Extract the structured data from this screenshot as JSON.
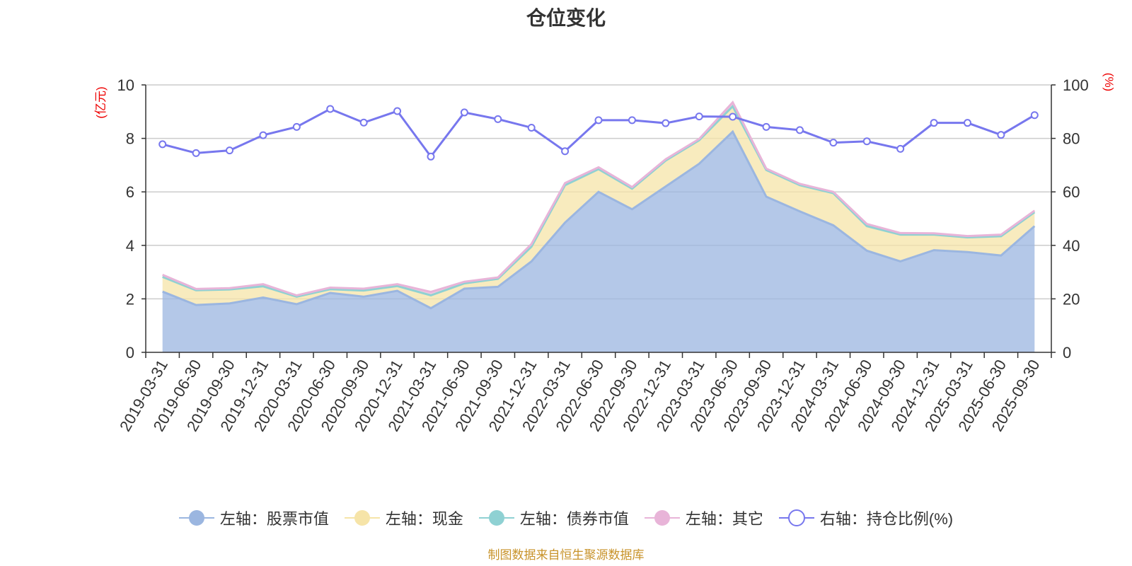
{
  "title": "仓位变化",
  "source": "制图数据来自恒生聚源数据库",
  "chart_data": {
    "type": "area",
    "title": "仓位变化",
    "categories": [
      "2019-03-31",
      "2019-06-30",
      "2019-09-30",
      "2019-12-31",
      "2020-03-31",
      "2020-06-30",
      "2020-09-30",
      "2020-12-31",
      "2021-03-31",
      "2021-06-30",
      "2021-09-30",
      "2021-12-31",
      "2022-03-31",
      "2022-06-30",
      "2022-09-30",
      "2022-12-31",
      "2023-03-31",
      "2023-06-30",
      "2023-09-30",
      "2023-12-31",
      "2024-03-31",
      "2024-06-30",
      "2024-09-30",
      "2024-12-31",
      "2025-03-31",
      "2025-06-30",
      "2025-09-30"
    ],
    "left_axis": {
      "label": "(亿元)",
      "ylim": [
        0,
        10
      ],
      "ticks": [
        0,
        2,
        4,
        6,
        8,
        10
      ]
    },
    "right_axis": {
      "label": "(%)",
      "ylim": [
        0,
        100
      ],
      "ticks": [
        0,
        20,
        40,
        60,
        80,
        100
      ]
    },
    "stacked": true,
    "series": [
      {
        "name": "左轴：股票市值",
        "axis": "left",
        "color": "#9bb6e0",
        "values": [
          2.27,
          1.77,
          1.83,
          2.05,
          1.8,
          2.22,
          2.08,
          2.3,
          1.65,
          2.38,
          2.45,
          3.4,
          4.85,
          6.0,
          5.35,
          6.2,
          7.05,
          8.25,
          5.82,
          5.27,
          4.75,
          3.8,
          3.4,
          3.82,
          3.75,
          3.62,
          4.72
        ]
      },
      {
        "name": "左轴：现金",
        "axis": "left",
        "color": "#f6e4a8",
        "values": [
          0.55,
          0.55,
          0.52,
          0.42,
          0.28,
          0.14,
          0.23,
          0.18,
          0.48,
          0.2,
          0.3,
          0.55,
          1.4,
          0.85,
          0.77,
          0.97,
          0.88,
          0.95,
          1.0,
          0.98,
          1.2,
          0.92,
          1.0,
          0.58,
          0.55,
          0.72,
          0.52
        ]
      },
      {
        "name": "左轴：债券市值",
        "axis": "left",
        "color": "#8fd1d3",
        "values": [
          0,
          0,
          0,
          0,
          0,
          0,
          0,
          0,
          0,
          0,
          0,
          0,
          0,
          0,
          0,
          0,
          0,
          0,
          0,
          0,
          0,
          0,
          0,
          0,
          0,
          0,
          0
        ]
      },
      {
        "name": "左轴：其它",
        "axis": "left",
        "color": "#e8b4d8",
        "values": [
          0.08,
          0.05,
          0.05,
          0.08,
          0.05,
          0.06,
          0.07,
          0.07,
          0.13,
          0.06,
          0.05,
          0.1,
          0.08,
          0.07,
          0.06,
          0.05,
          0.05,
          0.15,
          0.05,
          0.05,
          0.05,
          0.08,
          0.06,
          0.05,
          0.05,
          0.06,
          0.06
        ]
      },
      {
        "name": "右轴：持仓比例(%)",
        "axis": "right",
        "color": "#7777ee",
        "values": [
          77.8,
          74.5,
          75.5,
          81.2,
          84.3,
          91.0,
          85.9,
          90.2,
          73.2,
          89.7,
          87.2,
          84.0,
          75.2,
          86.8,
          86.8,
          85.7,
          88.2,
          88.1,
          84.3,
          83.1,
          78.4,
          78.9,
          76.1,
          85.8,
          85.8,
          81.3,
          88.7
        ]
      }
    ]
  }
}
